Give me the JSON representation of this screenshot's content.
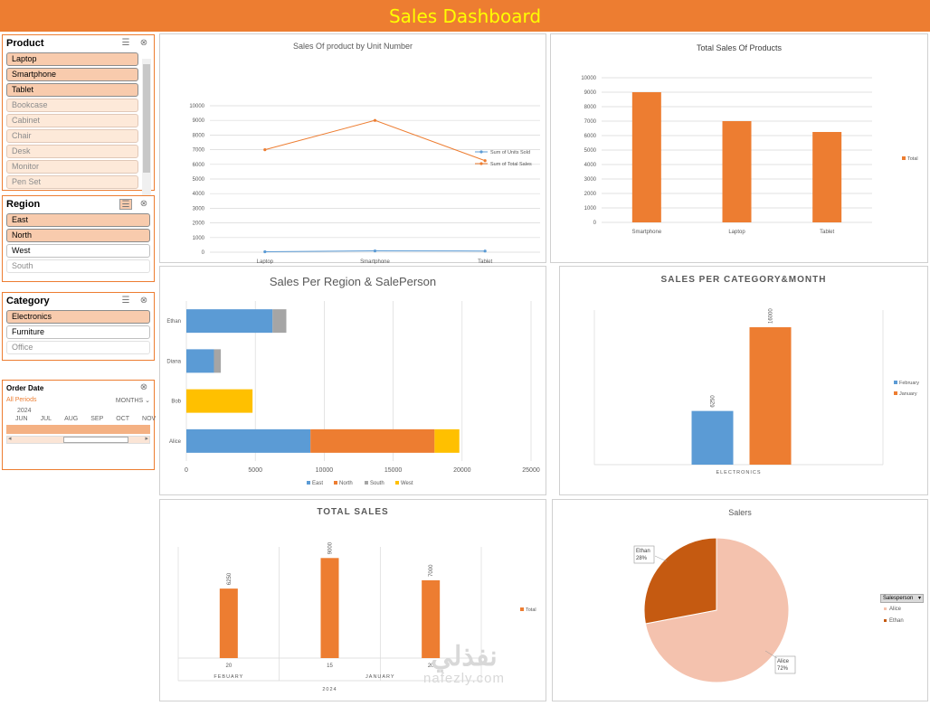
{
  "banner": {
    "title": "Sales Dashboard"
  },
  "colors": {
    "accent": "#ed7d31",
    "blue": "#5b9bd5",
    "gray": "#a5a5a5",
    "yellow": "#ffc000",
    "pie_alice": "#f4c2ae",
    "pie_ethan": "#c55a11",
    "banner_text": "#ffff00"
  },
  "slicers": {
    "product": {
      "title": "Product",
      "icons": [
        "multi-select-icon",
        "clear-filter-icon"
      ],
      "items": [
        {
          "label": "Laptop",
          "state": "selected"
        },
        {
          "label": "Smartphone",
          "state": "selected"
        },
        {
          "label": "Tablet",
          "state": "selected"
        },
        {
          "label": "Bookcase",
          "state": "nodata"
        },
        {
          "label": "Cabinet",
          "state": "nodata"
        },
        {
          "label": "Chair",
          "state": "nodata"
        },
        {
          "label": "Desk",
          "state": "nodata"
        },
        {
          "label": "Monitor",
          "state": "nodata"
        },
        {
          "label": "Pen Set",
          "state": "nodata"
        }
      ]
    },
    "region": {
      "title": "Region",
      "items": [
        {
          "label": "East",
          "state": "selected"
        },
        {
          "label": "North",
          "state": "selected"
        },
        {
          "label": "West",
          "state": "unselected"
        },
        {
          "label": "South",
          "state": "nodata"
        }
      ]
    },
    "category": {
      "title": "Category",
      "items": [
        {
          "label": "Electronics",
          "state": "selected"
        },
        {
          "label": "Furniture",
          "state": "unselected"
        },
        {
          "label": "Office",
          "state": "nodata"
        }
      ]
    },
    "order_date": {
      "title": "Order Date",
      "period_label": "All Periods",
      "level": "MONTHS",
      "year": "2024",
      "months": [
        "JUN",
        "JUL",
        "AUG",
        "SEP",
        "OCT",
        "NOV"
      ]
    }
  },
  "chart_data": [
    {
      "id": "units-chart",
      "type": "line",
      "title": "Sales Of product by Unit Number",
      "categories": [
        "Laptop",
        "Smartphone",
        "Tablet"
      ],
      "series": [
        {
          "name": "Sum of Units Sold",
          "values": [
            30,
            90,
            80
          ],
          "color": "#5b9bd5"
        },
        {
          "name": "Sum of Total Sales",
          "values": [
            7000,
            9000,
            6250
          ],
          "color": "#ed7d31"
        }
      ],
      "ylim": [
        0,
        10000
      ],
      "yticks": [
        0,
        1000,
        2000,
        3000,
        4000,
        5000,
        6000,
        7000,
        8000,
        9000,
        10000
      ],
      "grid": true,
      "legend": "right"
    },
    {
      "id": "total-sales-products",
      "type": "bar",
      "title": "Total Sales Of Products",
      "categories": [
        "Smartphone",
        "Laptop",
        "Tablet"
      ],
      "series": [
        {
          "name": "Total",
          "values": [
            9000,
            7000,
            6250
          ],
          "color": "#ed7d31"
        }
      ],
      "ylim": [
        0,
        10000
      ],
      "yticks": [
        0,
        1000,
        2000,
        3000,
        4000,
        5000,
        6000,
        7000,
        8000,
        9000,
        10000
      ],
      "grid": true,
      "legend": "right"
    },
    {
      "id": "region-salesperson",
      "type": "bar",
      "orientation": "horizontal",
      "stacked": true,
      "title": "Sales Per Region & SalePerson",
      "categories": [
        "Ethan",
        "Diana",
        "Bob",
        "Alice"
      ],
      "series": [
        {
          "name": "East",
          "values": [
            6250,
            2000,
            0,
            9000
          ],
          "color": "#5b9bd5"
        },
        {
          "name": "North",
          "values": [
            0,
            0,
            0,
            9000
          ],
          "color": "#ed7d31"
        },
        {
          "name": "South",
          "values": [
            1000,
            500,
            0,
            0
          ],
          "color": "#a5a5a5"
        },
        {
          "name": "West",
          "values": [
            0,
            0,
            4800,
            1800
          ],
          "color": "#ffc000"
        }
      ],
      "xlim": [
        0,
        25000
      ],
      "xticks": [
        0,
        5000,
        10000,
        15000,
        20000,
        25000
      ],
      "grid": true,
      "legend": "bottom"
    },
    {
      "id": "category-month",
      "type": "bar",
      "title": "SALES PER CATEGORY&MONTH",
      "categories": [
        "ELECTRONICS"
      ],
      "series": [
        {
          "name": "February",
          "values": [
            6250
          ],
          "color": "#5b9bd5"
        },
        {
          "name": "January",
          "values": [
            16000
          ],
          "color": "#ed7d31"
        }
      ],
      "ylim": [
        0,
        18000
      ],
      "data_labels": true,
      "legend": "right"
    },
    {
      "id": "total-sales",
      "type": "bar",
      "title": "TOTAL SALES",
      "categories": [
        "20",
        "15",
        "20"
      ],
      "groups": [
        {
          "label": "FEBUARY",
          "span": 1
        },
        {
          "label": "JANUARY",
          "span": 2
        }
      ],
      "year": "2024",
      "series": [
        {
          "name": "Total",
          "values": [
            6250,
            9000,
            7000
          ],
          "color": "#ed7d31"
        }
      ],
      "ylim": [
        0,
        10000
      ],
      "data_labels": true,
      "legend": "right"
    },
    {
      "id": "salers-pie",
      "type": "pie",
      "title": "Salers",
      "field_button": "Salesperson",
      "slices": [
        {
          "name": "Alice",
          "value": 72,
          "label": "72%",
          "color": "#f4c2ae"
        },
        {
          "name": "Ethan",
          "value": 28,
          "label": "28%",
          "color": "#c55a11"
        }
      ],
      "legend": "right"
    }
  ],
  "watermark": {
    "arabic": "نفذلي",
    "latin": "nafezly.com"
  }
}
